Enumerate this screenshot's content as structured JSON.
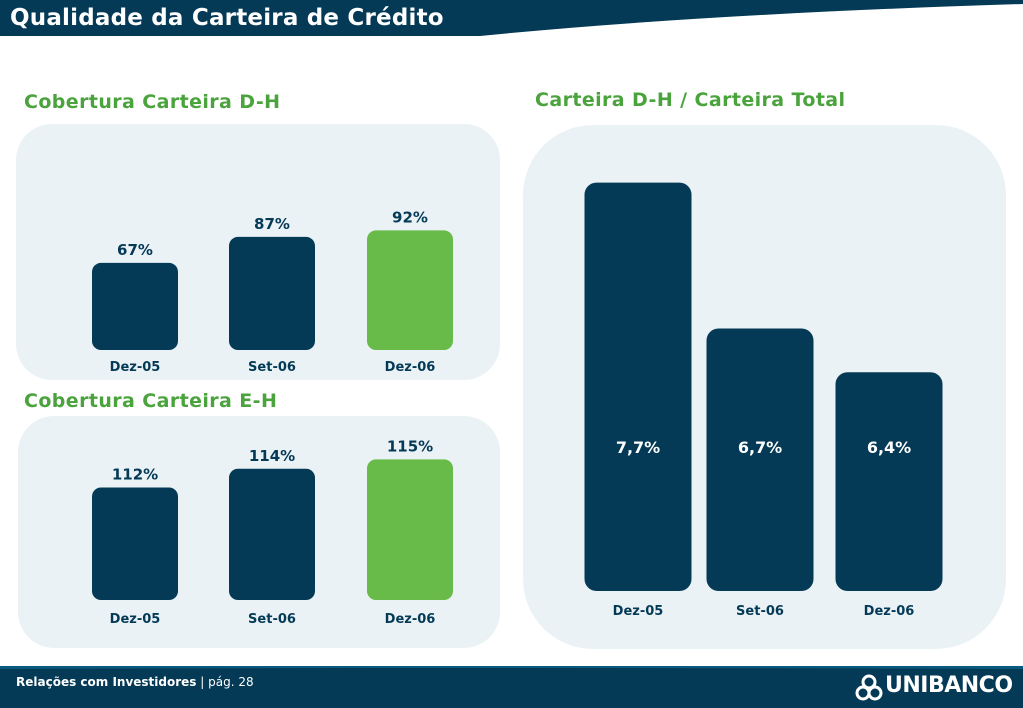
{
  "page": {
    "title": "Qualidade da Carteira de Crédito"
  },
  "colors": {
    "dark": "#043a56",
    "green": "#68bb48",
    "panel": "#ebf2f6",
    "title_green": "#4aa33c"
  },
  "sections": {
    "dh": {
      "title": "Cobertura Carteira D-H"
    },
    "eh": {
      "title": "Cobertura Carteira E-H"
    },
    "ratio": {
      "title": "Carteira D-H / Carteira Total"
    }
  },
  "chart_data": [
    {
      "type": "bar",
      "title": "Cobertura Carteira D-H",
      "categories": [
        "Dez-05",
        "Set-06",
        "Dez-06"
      ],
      "values": [
        67,
        87,
        92
      ],
      "labels": [
        "67%",
        "87%",
        "92%"
      ],
      "highlight_index": 2,
      "ylim": [
        0,
        100
      ]
    },
    {
      "type": "bar",
      "title": "Cobertura Carteira E-H",
      "categories": [
        "Dez-05",
        "Set-06",
        "Dez-06"
      ],
      "values": [
        112,
        114,
        115
      ],
      "labels": [
        "112%",
        "114%",
        "115%"
      ],
      "highlight_index": 2,
      "ylim": [
        100,
        116
      ]
    },
    {
      "type": "bar",
      "title": "Carteira D-H / Carteira Total",
      "categories": [
        "Dez-05",
        "Set-06",
        "Dez-06"
      ],
      "values": [
        7.7,
        6.7,
        6.4
      ],
      "labels": [
        "7,7%",
        "6,7%",
        "6,4%"
      ],
      "highlight_index": null,
      "ylim": [
        4.9,
        7.8
      ]
    }
  ],
  "footer": {
    "section": "Relações com Investidores",
    "separator": "|",
    "page": "pág. 28"
  },
  "logo": {
    "text": "UNIBANCO"
  }
}
